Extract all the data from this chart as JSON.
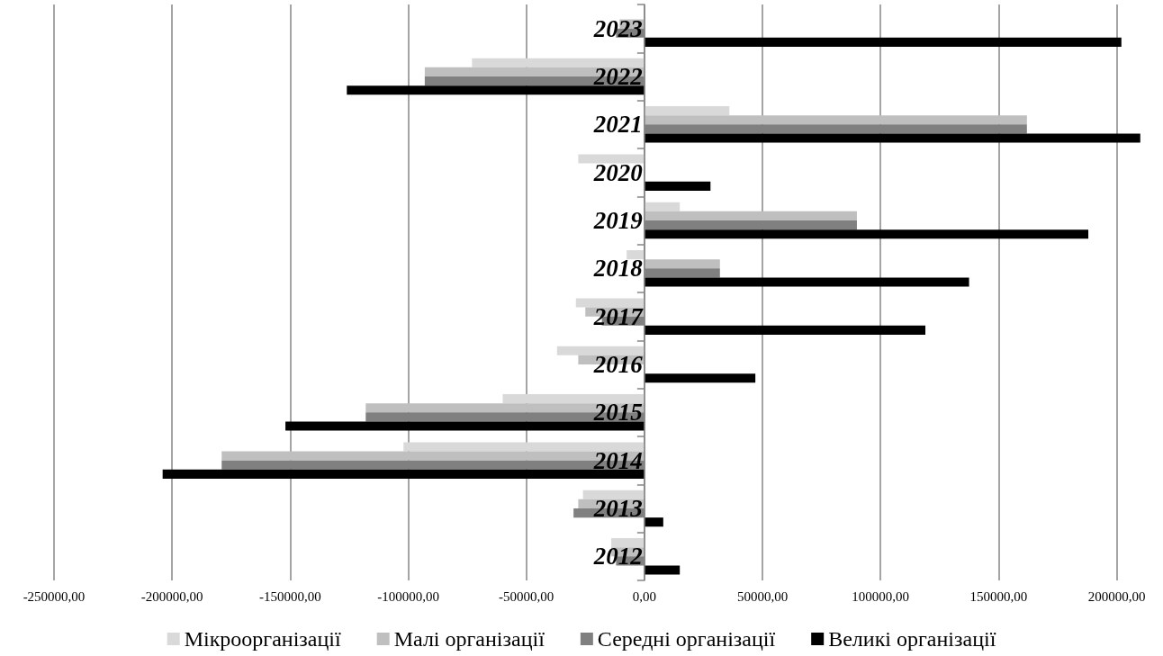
{
  "chart_data": {
    "type": "bar",
    "orientation": "horizontal",
    "categories": [
      "2023",
      "2022",
      "2021",
      "2020",
      "2019",
      "2018",
      "2017",
      "2016",
      "2015",
      "2014",
      "2013",
      "2012"
    ],
    "series": [
      {
        "name": "Мікроорганізації",
        "color": "#d9d9d9",
        "values": [
          0,
          -73000,
          36000,
          -28000,
          15000,
          -7500,
          -29000,
          -37000,
          -60000,
          -102000,
          -26000,
          -14000
        ]
      },
      {
        "name": "Малі організації",
        "color": "#bfbfbf",
        "values": [
          -10500,
          -93000,
          162000,
          null,
          90000,
          32000,
          -25000,
          -28000,
          -118000,
          -179000,
          -28000,
          -14000
        ]
      },
      {
        "name": "Середні організації",
        "color": "#808080",
        "values": [
          -12000,
          -93000,
          162000,
          null,
          90000,
          32000,
          -18000,
          null,
          -118000,
          -179000,
          -30000,
          -12000
        ]
      },
      {
        "name": "Великі організації",
        "color": "#000000",
        "values": [
          202000,
          -126000,
          210000,
          28000,
          188000,
          137500,
          119000,
          47000,
          -152000,
          -204000,
          8000,
          15000
        ]
      }
    ],
    "xlim": [
      -250000,
      212000
    ],
    "xticks": [
      {
        "value": -250000,
        "label": "-250000,00"
      },
      {
        "value": -200000,
        "label": "-200000,00"
      },
      {
        "value": -150000,
        "label": "-150000,00"
      },
      {
        "value": -100000,
        "label": "-100000,00"
      },
      {
        "value": -50000,
        "label": "-50000,00"
      },
      {
        "value": 0,
        "label": "0,00"
      },
      {
        "value": 50000,
        "label": "50000,00"
      },
      {
        "value": 100000,
        "label": "100000,00"
      },
      {
        "value": 150000,
        "label": "150000,00"
      },
      {
        "value": 200000,
        "label": "200000,00"
      }
    ],
    "grid": "x",
    "legend": "bottom"
  }
}
